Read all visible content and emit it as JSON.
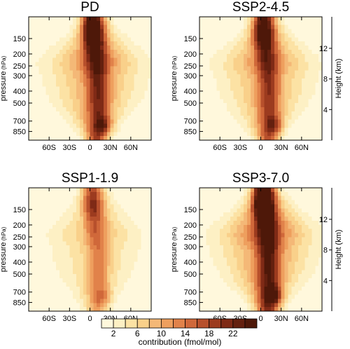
{
  "chart_data": {
    "type": "heatmap",
    "panels": [
      {
        "title": "PD",
        "intensity": 1.0,
        "show_left_axis": true,
        "show_right_axis": false
      },
      {
        "title": "SSP2-4.5",
        "intensity": 0.9,
        "show_left_axis": true,
        "show_right_axis": true
      },
      {
        "title": "SSP1-1.9",
        "intensity": 0.6,
        "show_left_axis": true,
        "show_right_axis": false
      },
      {
        "title": "SSP3-7.0",
        "intensity": 1.15,
        "show_left_axis": true,
        "show_right_axis": true
      }
    ],
    "x_axis": {
      "range": [
        -90,
        90
      ],
      "tick_values": [
        -60,
        -30,
        0,
        30,
        60
      ],
      "tick_labels": [
        "60S",
        "30S",
        "0",
        "30N",
        "60N"
      ]
    },
    "y_axis_left": {
      "label": "pressure",
      "unit_label": "(hPa)",
      "range_log": [
        100,
        1000
      ],
      "tick_values": [
        150,
        200,
        250,
        300,
        400,
        500,
        700,
        850
      ],
      "tick_labels": [
        "150",
        "200",
        "250",
        "300",
        "400",
        "500",
        "700",
        "850"
      ]
    },
    "y_axis_right": {
      "label": "Height (km)",
      "tick_values": [
        12,
        8,
        4
      ],
      "tick_labels": [
        "12",
        "8",
        "4"
      ]
    },
    "colorbar": {
      "label": "contribution (fmol/mol)",
      "levels": [
        2,
        4,
        6,
        8,
        10,
        12,
        14,
        16,
        18,
        20,
        22,
        24
      ],
      "labeled_levels": [
        "2",
        "6",
        "10",
        "14",
        "18",
        "22"
      ],
      "colors": [
        "#fff8dc",
        "#fdf0c4",
        "#fce2a4",
        "#f9d08a",
        "#f4b877",
        "#ee9f5e",
        "#e1824a",
        "#d0683a",
        "#b7502c",
        "#9c3b1f",
        "#7f2a16",
        "#64200f",
        "#4e1809"
      ]
    }
  }
}
